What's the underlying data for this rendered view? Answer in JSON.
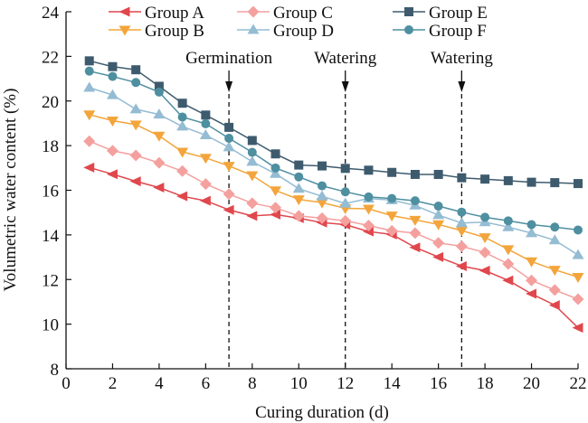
{
  "chart_data": {
    "type": "line",
    "title": "",
    "xlabel": "Curing duration (d)",
    "ylabel": "Volumetric water content (%)",
    "xlim": [
      0,
      22
    ],
    "ylim": [
      8,
      24
    ],
    "xticks": [
      0,
      2,
      4,
      6,
      8,
      10,
      12,
      14,
      16,
      18,
      20,
      22
    ],
    "yticks": [
      8,
      10,
      12,
      14,
      16,
      18,
      20,
      22,
      24
    ],
    "grid": false,
    "legend_position": "top",
    "x": [
      1,
      2,
      3,
      4,
      5,
      6,
      7,
      8,
      9,
      10,
      11,
      12,
      13,
      14,
      15,
      16,
      17,
      18,
      19,
      20,
      21,
      22
    ],
    "series": [
      {
        "name": "Group A",
        "marker": "triangle-left",
        "color": "#e0474c",
        "values": [
          17.02,
          16.72,
          16.4,
          16.12,
          15.73,
          15.53,
          15.12,
          14.85,
          14.91,
          14.75,
          14.55,
          14.46,
          14.15,
          14.02,
          13.44,
          13.01,
          12.6,
          12.4,
          11.96,
          11.36,
          10.85,
          9.84
        ]
      },
      {
        "name": "Group B",
        "marker": "triangle-down",
        "color": "#f3a53c",
        "values": [
          19.39,
          19.12,
          18.94,
          18.44,
          17.72,
          17.45,
          17.09,
          16.67,
          15.99,
          15.59,
          15.45,
          15.19,
          15.17,
          14.86,
          14.67,
          14.47,
          14.19,
          13.89,
          13.35,
          12.81,
          12.43,
          12.11
        ]
      },
      {
        "name": "Group C",
        "marker": "diamond",
        "color": "#f4a09e",
        "values": [
          18.2,
          17.77,
          17.56,
          17.23,
          16.86,
          16.28,
          15.83,
          15.42,
          15.22,
          14.85,
          14.75,
          14.63,
          14.42,
          14.18,
          14.08,
          13.64,
          13.49,
          13.21,
          12.7,
          11.96,
          11.53,
          11.12
        ]
      },
      {
        "name": "Group D",
        "marker": "triangle-up",
        "color": "#94bcd3",
        "values": [
          20.6,
          20.27,
          19.63,
          19.4,
          18.86,
          18.47,
          17.93,
          17.28,
          16.74,
          16.07,
          15.73,
          15.41,
          15.63,
          15.56,
          15.32,
          14.89,
          14.53,
          14.57,
          14.35,
          14.08,
          13.76,
          13.1
        ]
      },
      {
        "name": "Group E",
        "marker": "square",
        "color": "#3e5b6e",
        "values": [
          21.8,
          21.54,
          21.4,
          20.66,
          19.9,
          19.37,
          18.82,
          18.23,
          17.63,
          17.13,
          17.09,
          16.98,
          16.9,
          16.8,
          16.71,
          16.71,
          16.56,
          16.5,
          16.43,
          16.36,
          16.34,
          16.3
        ]
      },
      {
        "name": "Group F",
        "marker": "circle",
        "color": "#4e8fa0",
        "values": [
          21.34,
          21.1,
          20.83,
          20.4,
          19.28,
          18.98,
          18.33,
          17.7,
          17.0,
          16.6,
          16.2,
          15.93,
          15.7,
          15.63,
          15.53,
          15.29,
          15.02,
          14.79,
          14.63,
          14.46,
          14.35,
          14.22
        ]
      }
    ],
    "annotations": [
      {
        "label": "Germination",
        "x": 7
      },
      {
        "label": "Watering",
        "x": 12
      },
      {
        "label": "Watering",
        "x": 17
      }
    ]
  }
}
